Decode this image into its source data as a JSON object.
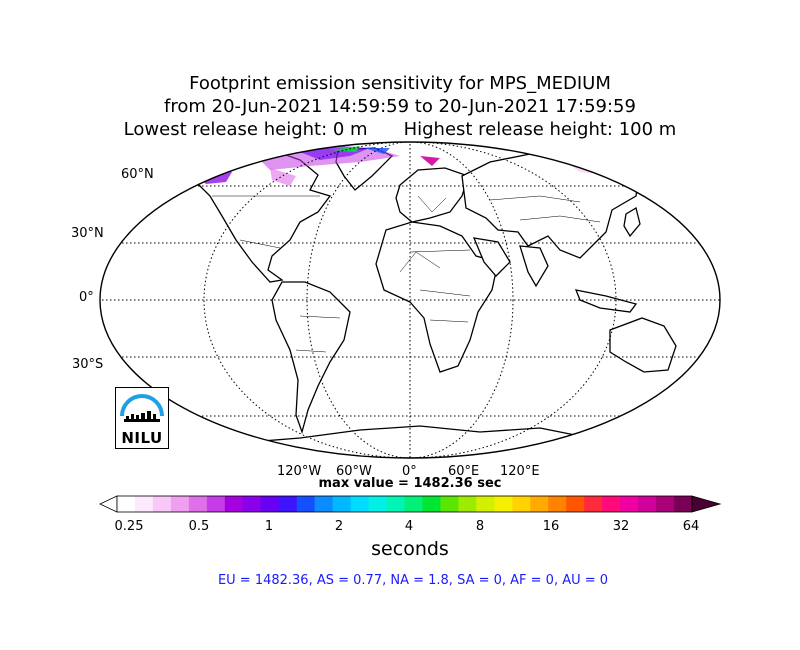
{
  "title": {
    "line1": "Footprint emission sensitivity for MPS_MEDIUM",
    "line2": "from 20-Jun-2021 14:59:59 to 20-Jun-2021 17:59:59",
    "line3_left": "Lowest release height: 0 m",
    "line3_right": "Highest release height: 100 m"
  },
  "map": {
    "projection": "robinson",
    "lat_labels": [
      "60°N",
      "30°N",
      "0°",
      "30°S"
    ],
    "lon_labels": [
      "120°W",
      "60°W",
      "0°",
      "60°E",
      "120°E"
    ],
    "footprint_region": "Arctic / northern high latitudes"
  },
  "max_value_text": "max value = 1482.36 sec",
  "colorbar": {
    "ticks": [
      "0.25",
      "0.5",
      "1",
      "2",
      "4",
      "8",
      "16",
      "32",
      "64"
    ],
    "label": "seconds",
    "colors": [
      "#ffffff",
      "#fde9fd",
      "#f8c8f8",
      "#f0a0f0",
      "#e070e8",
      "#c63ce8",
      "#a400e0",
      "#8a00ea",
      "#6800f4",
      "#3c14ff",
      "#1450ff",
      "#0a8cff",
      "#00b8ff",
      "#00dcff",
      "#00f0e6",
      "#00f5b4",
      "#00f078",
      "#00e633",
      "#5ae600",
      "#9eea00",
      "#d2f000",
      "#f5f000",
      "#ffd200",
      "#ffaa00",
      "#ff8200",
      "#ff5500",
      "#ff2a3c",
      "#ff0a78",
      "#f000a0",
      "#d2009b",
      "#aa0078",
      "#780055"
    ]
  },
  "region_summary": "EU = 1482.36,  AS = 0.77,  NA = 1.8,  SA = 0,  AF = 0,  AU = 0",
  "logo": {
    "text": "NILU",
    "colors": {
      "arc": "#1ea0e6",
      "city": "#000000"
    }
  }
}
